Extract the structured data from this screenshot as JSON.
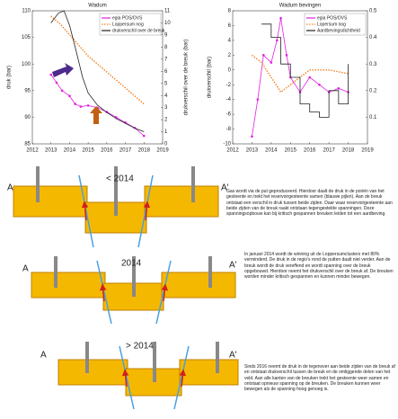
{
  "chart_data": [
    {
      "type": "line",
      "title": "Wadum",
      "ylabel": "druk (bar)",
      "y2label": "drukverschil over de breuk (bar)",
      "xlim": [
        2012,
        2019
      ],
      "xticks": [
        2012,
        2013,
        2014,
        2015,
        2016,
        2017,
        2018,
        2019
      ],
      "ylim": [
        85,
        110
      ],
      "yticks": [
        85,
        90,
        95,
        100,
        105,
        110
      ],
      "y2lim": [
        0,
        11
      ],
      "y2ticks": [
        0,
        1,
        2,
        3,
        4,
        5,
        6,
        7,
        8,
        9,
        10,
        11
      ],
      "legend": "upper right",
      "series": [
        {
          "name": "egia POS/OVS",
          "color": "#e020e0",
          "marker": true,
          "x": [
            2013,
            2013.3,
            2013.6,
            2014,
            2014.3,
            2014.6,
            2015,
            2015.5,
            2016,
            2016.5,
            2017,
            2017.5,
            2018
          ],
          "values": [
            98,
            96.5,
            95,
            94,
            92.5,
            92,
            92.2,
            91.8,
            91,
            90,
            89,
            88,
            86.5
          ]
        },
        {
          "name": "Loppersum nog",
          "color": "#f08020",
          "dash": true,
          "x": [
            2013,
            2013.5,
            2014,
            2014.5,
            2015,
            2015.5,
            2016,
            2016.5,
            2017,
            2017.5,
            2018
          ],
          "values": [
            109,
            107.5,
            105.5,
            103.5,
            101.5,
            100,
            98.5,
            97,
            95.5,
            94,
            92.5
          ]
        },
        {
          "name": "drukverschil over de breuk",
          "color": "#222222",
          "axis": "y2",
          "x": [
            2013,
            2013.4,
            2013.7,
            2014,
            2014.3,
            2014.7,
            2015,
            2015.5,
            2016,
            2016.5,
            2017,
            2017.5,
            2018
          ],
          "values": [
            10,
            10.8,
            11,
            9.8,
            8,
            5.5,
            4.2,
            3.2,
            2.6,
            2.1,
            1.7,
            1.3,
            1
          ]
        }
      ]
    },
    {
      "type": "line",
      "title": "Wadum bevingen",
      "ylabel": "drukverschil (bar)",
      "xlim": [
        2012,
        2019
      ],
      "xticks": [
        2012,
        2013,
        2014,
        2015,
        2016,
        2017,
        2018,
        2019
      ],
      "ylim": [
        -10,
        8
      ],
      "yticks": [
        -10,
        -8,
        -6,
        -4,
        -2,
        0,
        2,
        4,
        6,
        8
      ],
      "y2lim": [
        0,
        0.5
      ],
      "y2ticks": [
        0.1,
        0.2,
        0.3,
        0.4,
        0.5
      ],
      "legend": "upper right",
      "series": [
        {
          "name": "egia POS/OVS",
          "color": "#e020e0",
          "marker": true,
          "x": [
            2013,
            2013.3,
            2013.6,
            2014,
            2014.3,
            2014.5,
            2014.8,
            2015,
            2015.5,
            2016,
            2016.5,
            2017,
            2017.5,
            2018
          ],
          "values": [
            -9,
            -4,
            2,
            1,
            4,
            7,
            2,
            -1,
            -3,
            -1,
            -2,
            -3,
            -2.5,
            -3
          ]
        },
        {
          "name": "Lopersum nog",
          "color": "#f08020",
          "dash": true,
          "x": [
            2013,
            2013.5,
            2014,
            2014.5,
            2015,
            2015.5,
            2016,
            2017,
            2018
          ],
          "values": [
            2,
            1,
            -1,
            -3,
            -2,
            -1,
            0,
            0,
            -0.5
          ]
        },
        {
          "name": "Aardbevingsdichtheid",
          "color": "#222222",
          "axis": "y2",
          "step": true,
          "x": [
            2013.5,
            2014,
            2014.5,
            2015,
            2015.5,
            2016,
            2016.5,
            2017,
            2017.5,
            2018
          ],
          "values": [
            0.45,
            0.4,
            0.3,
            0.25,
            0.15,
            0.12,
            0.1,
            0.2,
            0.15,
            0.3
          ]
        }
      ]
    }
  ],
  "diagrams": [
    {
      "label_left": "A",
      "label_right": "A'",
      "period": "< 2014"
    },
    {
      "label_left": "A",
      "label_right": "A'",
      "period": "2014"
    },
    {
      "label_left": "A",
      "label_right": "A'",
      "period": "> 2014"
    }
  ],
  "paragraphs": [
    "Gas wordt via de put geproduceerd. Hierdoor daalt de druk in de poriën van het gesteente en trekt het reservoirgesteente samen (blauwe pijlen). Aan de breuk ontstaat een verschil in druk tussen beide zijden. Daar waar reservoirgesteente aan beide zijden van de breuk raakt ontstaan tegengestelde spanningen. Deze spanningsopbouw kan bij kritisch gespannen breuken leiden tot een aardbeving.",
    "In januari 2014 wordt de winning uit de Loppersumclusters met 80% verminderd. De druk in de regio's rond de putten daalt niet verder. Aan de breuk wordt de druk vereffend en wordt spanning over de breuk opgebouwd. Hierdoor neemt het drukverschil over de breuk af. De breuken worden minder kritisch gespannen en kunnen minder bewegen.",
    "Sinds 2016 neemt de druk in de tegenover aan beide zijden van de breuk af en ontstaat drukverschil tussen de breuk en de omliggende delen van het veld. Aan alle kanten van de breuken trekt het gesteente weer samen en ontstaat opnieuw spanning op de breuken. De breuken kunnen weer bewegen als de spanning hoog genoeg is."
  ]
}
